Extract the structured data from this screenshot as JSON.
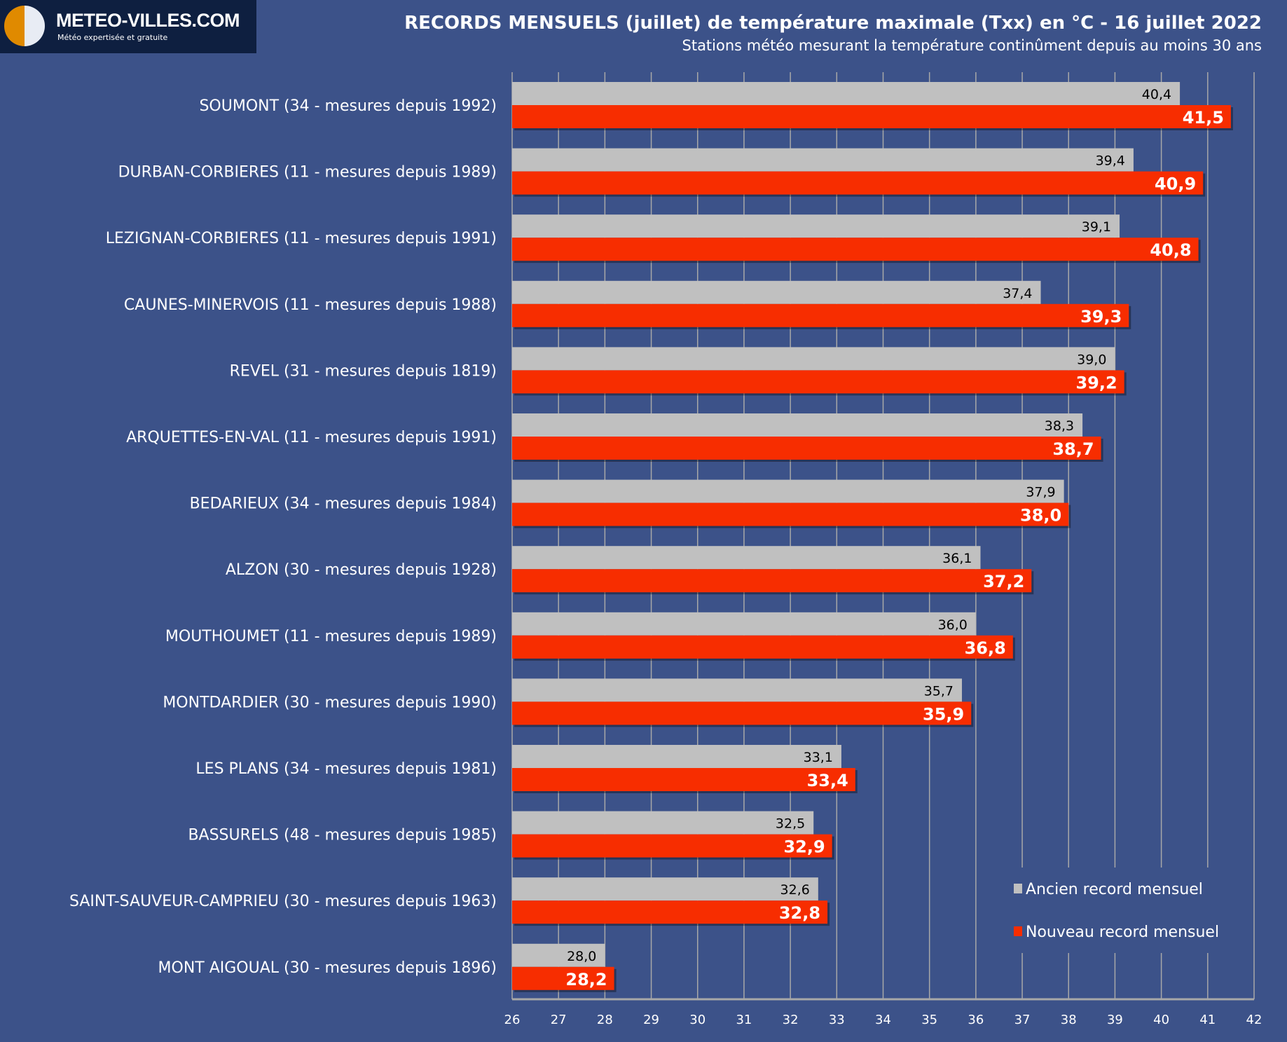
{
  "logo": {
    "name": "METEO-VILLES.COM",
    "tagline": "Météo expertisée et gratuite"
  },
  "chart_data": {
    "type": "bar",
    "orientation": "horizontal",
    "title": "RECORDS MENSUELS (juillet) de température maximale (Txx) en °C - 16 juillet 2022",
    "subtitle": "Stations météo mesurant la température continûment depuis au moins 30 ans",
    "categories": [
      "SOUMONT (34 - mesures depuis 1992)",
      "DURBAN-CORBIERES (11 - mesures depuis 1989)",
      "LEZIGNAN-CORBIERES (11 - mesures depuis 1991)",
      "CAUNES-MINERVOIS (11 - mesures depuis 1988)",
      "REVEL (31 - mesures depuis 1819)",
      "ARQUETTES-EN-VAL (11 - mesures depuis 1991)",
      "BEDARIEUX (34 - mesures depuis 1984)",
      "ALZON (30 - mesures depuis 1928)",
      "MOUTHOUMET (11 - mesures depuis 1989)",
      "MONTDARDIER (30 - mesures depuis 1990)",
      "LES PLANS (34 - mesures depuis 1981)",
      "BASSURELS (48 - mesures depuis 1985)",
      "SAINT-SAUVEUR-CAMPRIEU (30 - mesures depuis 1963)",
      "MONT AIGOUAL (30 - mesures depuis 1896)"
    ],
    "series": [
      {
        "name": "Ancien record mensuel",
        "color": "#c0c0c0",
        "values": [
          40.4,
          39.4,
          39.1,
          37.4,
          39.0,
          38.3,
          37.9,
          36.1,
          36.0,
          35.7,
          33.1,
          32.5,
          32.6,
          28.0
        ]
      },
      {
        "name": "Nouveau record mensuel",
        "color": "#f72d00",
        "values": [
          41.5,
          40.9,
          40.8,
          39.3,
          39.2,
          38.7,
          38.0,
          37.2,
          36.8,
          35.9,
          33.4,
          32.9,
          32.8,
          28.2
        ]
      }
    ],
    "xlim": [
      26,
      42
    ],
    "xticks": [
      26,
      27,
      28,
      29,
      30,
      31,
      32,
      33,
      34,
      35,
      36,
      37,
      38,
      39,
      40,
      41,
      42
    ],
    "grid": true,
    "legend": "bottom-right",
    "decimal_separator": ","
  }
}
